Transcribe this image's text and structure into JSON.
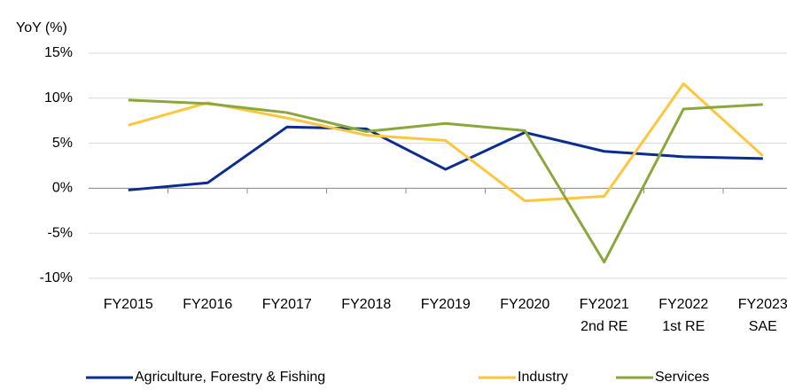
{
  "chart_data": {
    "type": "line",
    "y_axis_label": "YoY (%)",
    "categories": [
      [
        "FY2015"
      ],
      [
        "FY2016"
      ],
      [
        "FY2017"
      ],
      [
        "FY2018"
      ],
      [
        "FY2019"
      ],
      [
        "FY2020"
      ],
      [
        "FY2021",
        "2nd RE"
      ],
      [
        "FY2022",
        "1st RE"
      ],
      [
        "FY2023",
        "SAE"
      ]
    ],
    "series": [
      {
        "name": "Agriculture, Forestry & Fishing",
        "color": "#0a2d8f",
        "values": [
          -0.2,
          0.6,
          6.8,
          6.6,
          2.1,
          6.2,
          4.1,
          3.5,
          3.3
        ]
      },
      {
        "name": "Industry",
        "color": "#fec63d",
        "values": [
          7.0,
          9.5,
          7.8,
          5.9,
          5.3,
          -1.4,
          -0.9,
          11.6,
          3.6
        ]
      },
      {
        "name": "Services",
        "color": "#8aa73b",
        "values": [
          9.8,
          9.4,
          8.4,
          6.3,
          7.2,
          6.4,
          -8.2,
          8.8,
          9.3
        ]
      }
    ],
    "ylim": [
      -10,
      15
    ],
    "yticks": [
      {
        "value": -10,
        "label": "-10%"
      },
      {
        "value": -5,
        "label": "-5%"
      },
      {
        "value": 0,
        "label": "0%"
      },
      {
        "value": 5,
        "label": "5%"
      },
      {
        "value": 10,
        "label": "10%"
      },
      {
        "value": 15,
        "label": "15%"
      }
    ],
    "grid": true,
    "legend": "bottom"
  }
}
